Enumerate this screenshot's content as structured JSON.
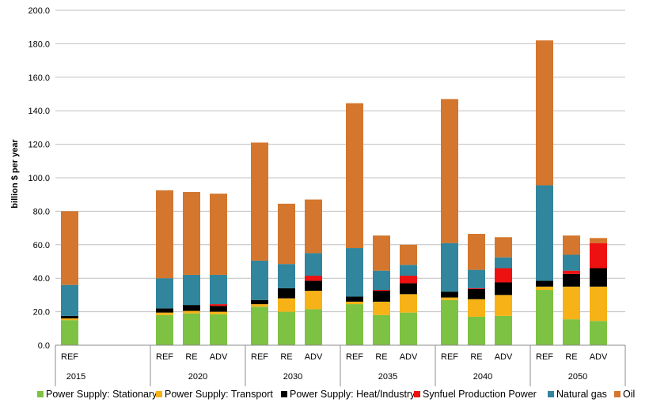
{
  "chart_data": {
    "type": "stacked-bar",
    "title": "",
    "ylabel": "billion $ per year",
    "ylim": [
      0,
      200
    ],
    "ytick_step": 20,
    "ytick_labels": [
      "0.0",
      "20.0",
      "40.0",
      "60.0",
      "80.0",
      "100.0",
      "120.0",
      "140.0",
      "160.0",
      "180.0",
      "200.0"
    ],
    "groups": [
      {
        "year": "2015",
        "scenarios": [
          "REF"
        ]
      },
      {
        "year": "2020",
        "scenarios": [
          "REF",
          "RE",
          "ADV"
        ]
      },
      {
        "year": "2030",
        "scenarios": [
          "REF",
          "RE",
          "ADV"
        ]
      },
      {
        "year": "2035",
        "scenarios": [
          "REF",
          "RE",
          "ADV"
        ]
      },
      {
        "year": "2040",
        "scenarios": [
          "REF",
          "RE",
          "ADV"
        ]
      },
      {
        "year": "2050",
        "scenarios": [
          "REF",
          "RE",
          "ADV"
        ]
      }
    ],
    "series": [
      {
        "name": "Power Supply: Stationary",
        "color": "#7dc242",
        "values": [
          15,
          18,
          19,
          18.5,
          23,
          20,
          21.5,
          24.5,
          18,
          19.5,
          27,
          17,
          17.5,
          33,
          15.5,
          14.5
        ]
      },
      {
        "name": "Power Supply: Transport",
        "color": "#f7b217",
        "values": [
          1,
          1.5,
          1.5,
          1.5,
          1.5,
          8,
          11,
          1.5,
          8,
          11,
          1.5,
          10.5,
          12.5,
          2,
          19.5,
          20.5
        ]
      },
      {
        "name": "Power Supply: Heat/Industry",
        "color": "#000000",
        "values": [
          1.5,
          2.5,
          3.5,
          3.5,
          2.5,
          6,
          6,
          3,
          6.5,
          6.5,
          3.5,
          6,
          7.5,
          3.5,
          7.5,
          11
        ]
      },
      {
        "name": "Synfuel Production Power",
        "color": "#ee1111",
        "values": [
          0,
          0,
          0,
          1,
          0,
          0,
          3,
          0,
          0.5,
          4.5,
          0,
          0.5,
          8.5,
          0,
          2,
          15
        ]
      },
      {
        "name": "Natural gas",
        "color": "#31859c",
        "values": [
          18.5,
          18,
          18,
          17.5,
          23.5,
          14.5,
          13.5,
          29,
          11.5,
          6.5,
          29,
          11,
          6.5,
          57,
          9.5,
          0
        ]
      },
      {
        "name": "Oil",
        "color": "#d4762d",
        "values": [
          44,
          52.5,
          49.5,
          48.5,
          70.5,
          36,
          32,
          86.5,
          21,
          12,
          86,
          21.5,
          12,
          86.5,
          11.5,
          3
        ]
      }
    ]
  }
}
